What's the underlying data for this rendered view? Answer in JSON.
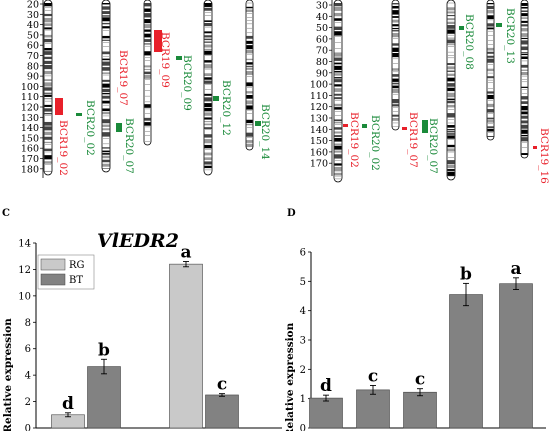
{
  "chart_data": [
    {
      "type": "chromosome-map",
      "axis_ticks": [
        "20",
        "30",
        "40",
        "50",
        "60",
        "70",
        "80",
        "90",
        "100",
        "110",
        "120",
        "130",
        "140",
        "150",
        "160",
        "170",
        "180"
      ],
      "labels": [
        {
          "text": "BCR19_02",
          "color": "#e8202a"
        },
        {
          "text": "BCR20_02",
          "color": "#1a8a3a"
        },
        {
          "text": "BCR19_07",
          "color": "#e8202a"
        },
        {
          "text": "BCR20_07",
          "color": "#1a8a3a"
        },
        {
          "text": "BCR19_09",
          "color": "#e8202a"
        },
        {
          "text": "BCR20_09",
          "color": "#1a8a3a"
        },
        {
          "text": "BCR20_12",
          "color": "#1a8a3a"
        },
        {
          "text": "BCR20_14",
          "color": "#1a8a3a"
        }
      ]
    },
    {
      "type": "chromosome-map",
      "axis_ticks": [
        "30",
        "40",
        "50",
        "60",
        "70",
        "80",
        "90",
        "100",
        "110",
        "120",
        "130",
        "140",
        "150",
        "160",
        "170"
      ],
      "labels": [
        {
          "text": "BCR19_02",
          "color": "#e8202a"
        },
        {
          "text": "BCR20_02",
          "color": "#1a8a3a"
        },
        {
          "text": "BCR19_07",
          "color": "#e8202a"
        },
        {
          "text": "BCR20_07",
          "color": "#1a8a3a"
        },
        {
          "text": "BCR20_08",
          "color": "#1a8a3a"
        },
        {
          "text": "BCR20_13",
          "color": "#1a8a3a"
        },
        {
          "text": "BCR19_16",
          "color": "#e8202a"
        }
      ]
    },
    {
      "panel": "C",
      "type": "bar",
      "title": "VlEDR2",
      "ylabel": "Relative expression",
      "ylim": [
        0,
        14
      ],
      "yticks": [
        "0",
        "2",
        "4",
        "6",
        "8",
        "10",
        "12",
        "14"
      ],
      "legend": {
        "placement": "top-left",
        "entries": [
          "RG",
          "BT"
        ]
      },
      "series": [
        {
          "name": "RG",
          "color": "#c9c9c9",
          "values": [
            1.0,
            12.4
          ],
          "errors": [
            0.15,
            0.2
          ],
          "letters": [
            "d",
            "a"
          ]
        },
        {
          "name": "BT",
          "color": "#828282",
          "values": [
            4.65,
            2.5
          ],
          "errors": [
            0.55,
            0.1
          ],
          "letters": [
            "b",
            "c"
          ]
        }
      ]
    },
    {
      "panel": "D",
      "type": "bar",
      "ylabel": "Relative expression",
      "ylim": [
        0,
        6
      ],
      "yticks": [
        "0",
        "1",
        "2",
        "3",
        "4",
        "5",
        "6"
      ],
      "series": [
        {
          "color": "#828282",
          "values": [
            1.02,
            1.3,
            1.22,
            4.55,
            4.92
          ],
          "errors": [
            0.1,
            0.15,
            0.12,
            0.38,
            0.2
          ],
          "letters": [
            "d",
            "c",
            "c",
            "b",
            "a"
          ]
        }
      ]
    }
  ]
}
